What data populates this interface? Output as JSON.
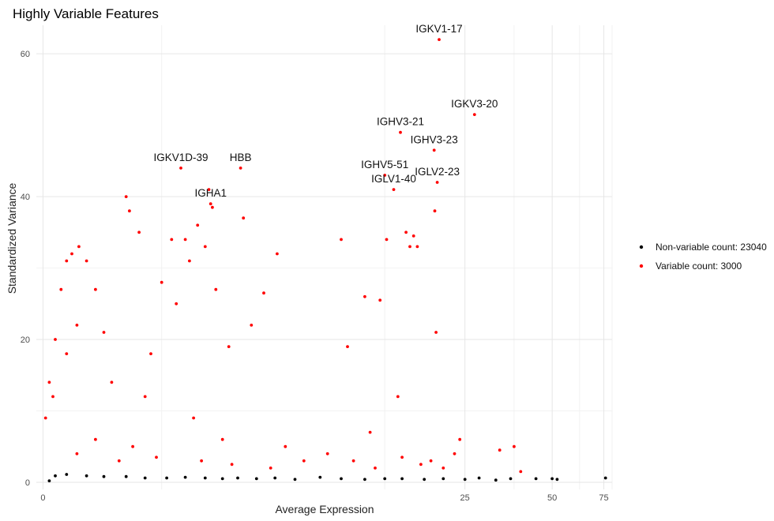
{
  "chart_data": {
    "type": "scatter",
    "title": "Highly Variable Features",
    "xlabel": "Average Expression",
    "ylabel": "Standardized Variance",
    "x_scale": "log1p",
    "x_ticks": [
      0,
      25,
      50,
      75
    ],
    "y_ticks": [
      0,
      20,
      40,
      60
    ],
    "ylim": [
      -1,
      64
    ],
    "xlim": [
      -0.05,
      80
    ],
    "grid": true,
    "legend_position": "right",
    "series": [
      {
        "name": "Non-variable count: 23040",
        "color": "#000000",
        "points": [
          [
            0.05,
            0.2
          ],
          [
            0.1,
            0.9
          ],
          [
            0.2,
            1.1
          ],
          [
            0.4,
            0.9
          ],
          [
            0.6,
            0.8
          ],
          [
            0.9,
            0.8
          ],
          [
            1.2,
            0.6
          ],
          [
            1.6,
            0.6
          ],
          [
            2.0,
            0.7
          ],
          [
            2.5,
            0.6
          ],
          [
            3.0,
            0.5
          ],
          [
            3.5,
            0.6
          ],
          [
            4.2,
            0.5
          ],
          [
            5.0,
            0.6
          ],
          [
            6.0,
            0.4
          ],
          [
            7.5,
            0.7
          ],
          [
            9.0,
            0.5
          ],
          [
            11.0,
            0.4
          ],
          [
            13.0,
            0.5
          ],
          [
            15.0,
            0.5
          ],
          [
            18.0,
            0.4
          ],
          [
            21.0,
            0.5
          ],
          [
            25.0,
            0.4
          ],
          [
            28.0,
            0.6
          ],
          [
            32.0,
            0.3
          ],
          [
            36.0,
            0.5
          ],
          [
            44.0,
            0.5
          ],
          [
            50.0,
            0.5
          ],
          [
            52.0,
            0.4
          ],
          [
            76.0,
            0.6
          ]
        ]
      },
      {
        "name": "Variable count: 3000",
        "color": "#ff0000",
        "points": [
          [
            0.02,
            9
          ],
          [
            0.05,
            14
          ],
          [
            0.08,
            12
          ],
          [
            0.1,
            20
          ],
          [
            0.15,
            27
          ],
          [
            0.2,
            31
          ],
          [
            0.25,
            32
          ],
          [
            0.32,
            33
          ],
          [
            0.4,
            31
          ],
          [
            0.2,
            18
          ],
          [
            0.3,
            22
          ],
          [
            0.5,
            27
          ],
          [
            0.6,
            21
          ],
          [
            0.7,
            14
          ],
          [
            0.9,
            40
          ],
          [
            0.95,
            38
          ],
          [
            1.1,
            35
          ],
          [
            1.3,
            18
          ],
          [
            1.5,
            28
          ],
          [
            1.7,
            34
          ],
          [
            1.8,
            25
          ],
          [
            1.9,
            44
          ],
          [
            2.0,
            34
          ],
          [
            2.1,
            31
          ],
          [
            2.6,
            41
          ],
          [
            2.65,
            39
          ],
          [
            2.7,
            38.5
          ],
          [
            2.5,
            33
          ],
          [
            2.3,
            36
          ],
          [
            2.8,
            27
          ],
          [
            3.6,
            44
          ],
          [
            3.7,
            37
          ],
          [
            4.0,
            22
          ],
          [
            4.5,
            26.5
          ],
          [
            3.2,
            19
          ],
          [
            1.2,
            12
          ],
          [
            2.2,
            9
          ],
          [
            3.0,
            6
          ],
          [
            5.1,
            32
          ],
          [
            5.5,
            5
          ],
          [
            9.0,
            34
          ],
          [
            9.5,
            19
          ],
          [
            11.0,
            26
          ],
          [
            11.5,
            7
          ],
          [
            13.0,
            43
          ],
          [
            13.2,
            34
          ],
          [
            14.0,
            41
          ],
          [
            14.5,
            12
          ],
          [
            15.5,
            35
          ],
          [
            16.0,
            33
          ],
          [
            16.5,
            34.5
          ],
          [
            17.0,
            33
          ],
          [
            19.5,
            46.5
          ],
          [
            19.6,
            38
          ],
          [
            19.8,
            21
          ],
          [
            20.0,
            42
          ],
          [
            20.3,
            62
          ],
          [
            19.0,
            3
          ],
          [
            23.0,
            4
          ],
          [
            24.0,
            6
          ],
          [
            27.0,
            51.5
          ],
          [
            33.0,
            4.5
          ],
          [
            37.0,
            5
          ],
          [
            39.0,
            1.5
          ],
          [
            14.8,
            49
          ],
          [
            12.5,
            25.5
          ],
          [
            0.3,
            4
          ],
          [
            0.5,
            6
          ],
          [
            0.8,
            3
          ],
          [
            1.0,
            5
          ],
          [
            1.4,
            3.5
          ],
          [
            2.4,
            3
          ],
          [
            3.3,
            2.5
          ],
          [
            4.8,
            2
          ],
          [
            6.5,
            3
          ],
          [
            8.0,
            4
          ],
          [
            10.0,
            3
          ],
          [
            12.0,
            2
          ],
          [
            15.0,
            3.5
          ],
          [
            17.5,
            2.5
          ],
          [
            21.0,
            2
          ]
        ]
      }
    ],
    "annotations": [
      {
        "text": "IGKV1-17",
        "x": 20.3,
        "y": 62
      },
      {
        "text": "IGKV3-20",
        "x": 27.0,
        "y": 51.5
      },
      {
        "text": "IGHV3-21",
        "x": 14.8,
        "y": 49
      },
      {
        "text": "HBB",
        "x": 3.6,
        "y": 44
      },
      {
        "text": "IGHV5-51",
        "x": 13.0,
        "y": 43
      },
      {
        "text": "IGHV3-23",
        "x": 19.5,
        "y": 46.5
      },
      {
        "text": "IGLV2-23",
        "x": 20.0,
        "y": 42
      },
      {
        "text": "IGKV1D-39",
        "x": 1.9,
        "y": 44
      },
      {
        "text": "IGHA1",
        "x": 2.65,
        "y": 39
      },
      {
        "text": "IGLV1-40",
        "x": 14.0,
        "y": 41
      }
    ]
  }
}
